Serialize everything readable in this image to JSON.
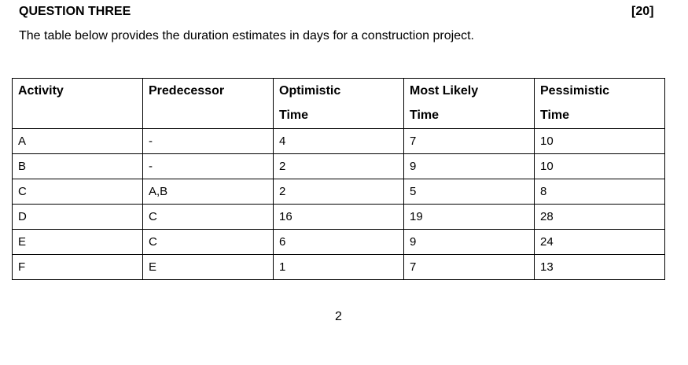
{
  "header": {
    "title": "QUESTION THREE",
    "marks": "[20]"
  },
  "intro": "The table below provides the duration estimates in days for a construction project.",
  "table": {
    "columns": [
      "Activity",
      "Predecessor",
      "Optimistic Time",
      "Most Likely Time",
      "Pessimistic Time"
    ],
    "rows": [
      [
        "A",
        "-",
        "4",
        "7",
        "10"
      ],
      [
        "B",
        "-",
        "2",
        "9",
        "10"
      ],
      [
        "C",
        "A,B",
        "2",
        "5",
        "8"
      ],
      [
        "D",
        "C",
        "16",
        "19",
        "28"
      ],
      [
        "E",
        "C",
        "6",
        "9",
        "24"
      ],
      [
        "F",
        "E",
        "1",
        "7",
        "13"
      ]
    ]
  },
  "page_number": "2"
}
